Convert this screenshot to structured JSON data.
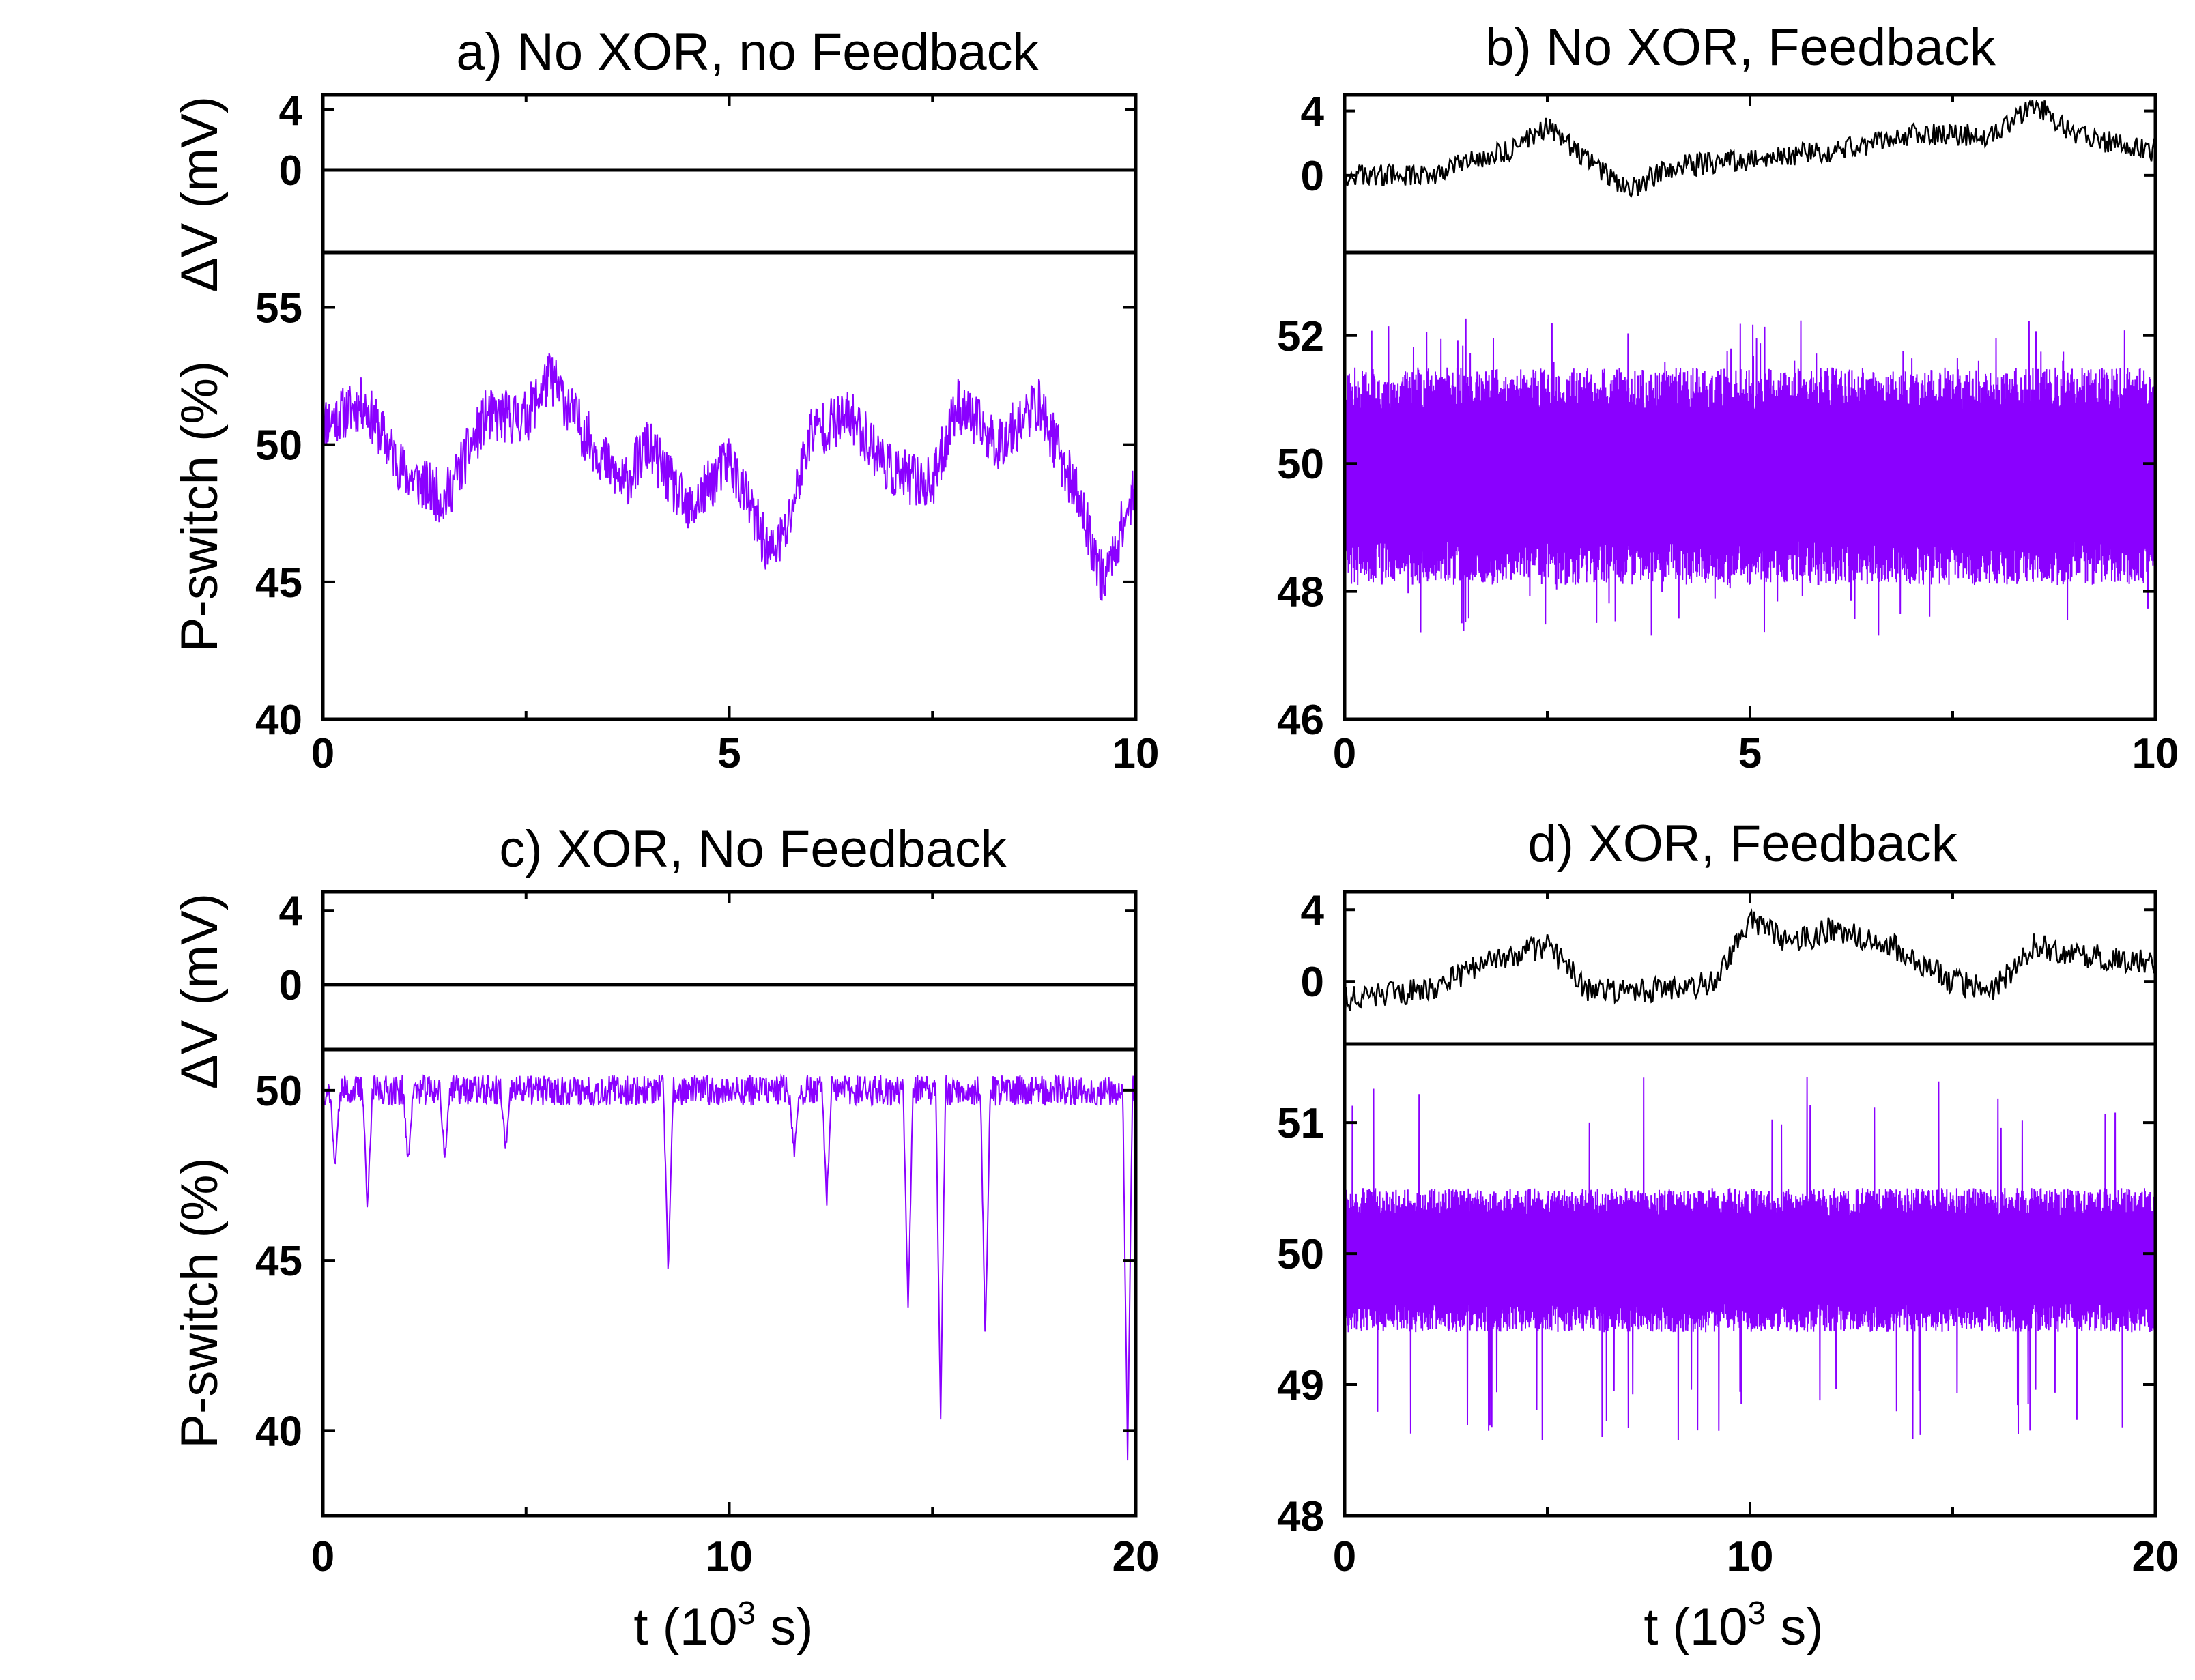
{
  "figure": {
    "xlabel_main": "t (10",
    "xlabel_sup": "3",
    "xlabel_tail": " s)",
    "ylabel_top": "ΔV (mV)",
    "ylabel_bottom": "P-switch (%)"
  },
  "colors": {
    "trace_purple": "#8a00ff",
    "trace_black": "#000000",
    "axis": "#000000"
  },
  "chart_data": [
    {
      "id": "a",
      "type": "line",
      "title": "a) No XOR, no Feedback",
      "xlim": [
        0,
        10
      ],
      "xticks": [
        "0",
        "5",
        "10"
      ],
      "top": {
        "ylabel": "ΔV (mV)",
        "yticks": [
          "4",
          "0"
        ],
        "ylim": [
          -5.5,
          5
        ],
        "style": "flat",
        "level": 0
      },
      "bottom": {
        "ylabel": "P-switch (%)",
        "yticks": [
          "40",
          "45",
          "50",
          "55"
        ],
        "ylim": [
          40,
          57
        ],
        "style": "wander",
        "mean": 49.8,
        "amplitude": 2.2,
        "noise": 1.0,
        "seed": 11,
        "keypoints": [
          [
            0,
            50.8
          ],
          [
            0.5,
            51.5
          ],
          [
            1,
            49
          ],
          [
            1.5,
            48
          ],
          [
            2,
            51
          ],
          [
            2.5,
            51
          ],
          [
            2.8,
            52.5
          ],
          [
            3.2,
            50.5
          ],
          [
            3.7,
            48.5
          ],
          [
            4,
            50
          ],
          [
            4.5,
            47.5
          ],
          [
            5,
            49.5
          ],
          [
            5.5,
            46
          ],
          [
            5.7,
            46.8
          ],
          [
            6,
            50.5
          ],
          [
            6.5,
            51
          ],
          [
            7,
            49
          ],
          [
            7.5,
            48.5
          ],
          [
            7.8,
            51.5
          ],
          [
            8.3,
            50
          ],
          [
            8.8,
            51.5
          ],
          [
            9.3,
            48
          ],
          [
            9.6,
            45
          ],
          [
            10,
            48.5
          ]
        ]
      }
    },
    {
      "id": "b",
      "type": "line",
      "title": "b) No XOR, Feedback",
      "xlim": [
        0,
        10
      ],
      "xticks": [
        "0",
        "5",
        "10"
      ],
      "top": {
        "ylabel": "ΔV (mV)",
        "yticks": [
          "4",
          "0"
        ],
        "ylim": [
          -4.8,
          5
        ],
        "style": "walk",
        "keypoints": [
          [
            0,
            0
          ],
          [
            1,
            0
          ],
          [
            2,
            1.5
          ],
          [
            2.5,
            3
          ],
          [
            3,
            1
          ],
          [
            3.5,
            -1
          ],
          [
            4,
            0.5
          ],
          [
            5,
            1
          ],
          [
            6,
            1.5
          ],
          [
            7,
            2.5
          ],
          [
            8,
            2.5
          ],
          [
            8.5,
            4.5
          ],
          [
            9,
            2.5
          ],
          [
            10,
            1.5
          ]
        ]
      },
      "bottom": {
        "ylabel": "P-switch (%)",
        "yticks": [
          "46",
          "48",
          "50",
          "52"
        ],
        "ylim": [
          46,
          53.3
        ],
        "style": "band",
        "mean": 49.8,
        "halfwidth": 1.7,
        "spikes": 2.5,
        "seed": 23
      }
    },
    {
      "id": "c",
      "type": "line",
      "title": "c) XOR, No Feedback",
      "xlim": [
        0,
        20
      ],
      "xticks": [
        "0",
        "10",
        "20"
      ],
      "top": {
        "ylabel": "ΔV (mV)",
        "yticks": [
          "4",
          "0"
        ],
        "ylim": [
          -3.5,
          5
        ],
        "style": "flat",
        "level": 0
      },
      "bottom": {
        "ylabel": "P-switch (%)",
        "yticks": [
          "40",
          "45",
          "50"
        ],
        "ylim": [
          37.5,
          51.2
        ],
        "style": "dips",
        "mean": 50,
        "seed": 37,
        "dips": [
          [
            0.3,
            47.5
          ],
          [
            1.1,
            46.5
          ],
          [
            2.1,
            47.8
          ],
          [
            3.0,
            48.0
          ],
          [
            4.5,
            48.2
          ],
          [
            8.5,
            44.6
          ],
          [
            11.6,
            48.0
          ],
          [
            12.4,
            46.8
          ],
          [
            14.4,
            43.6
          ],
          [
            15.2,
            40.4
          ],
          [
            16.3,
            42.6
          ],
          [
            19.8,
            39.2
          ]
        ]
      }
    },
    {
      "id": "d",
      "type": "line",
      "title": "d) XOR, Feedback",
      "xlim": [
        0,
        20
      ],
      "xticks": [
        "0",
        "10",
        "20"
      ],
      "top": {
        "ylabel": "ΔV (mV)",
        "yticks": [
          "4",
          "0"
        ],
        "ylim": [
          -3.5,
          5
        ],
        "style": "walk",
        "keypoints": [
          [
            0,
            -1
          ],
          [
            2,
            -0.5
          ],
          [
            3.5,
            1
          ],
          [
            5,
            2
          ],
          [
            6,
            -0.5
          ],
          [
            8,
            -0.5
          ],
          [
            9.2,
            0
          ],
          [
            10,
            3.5
          ],
          [
            11,
            2
          ],
          [
            12,
            3
          ],
          [
            13.5,
            2
          ],
          [
            15,
            0
          ],
          [
            16,
            -0.5
          ],
          [
            17,
            2
          ],
          [
            18,
            1.5
          ],
          [
            20,
            1
          ]
        ]
      },
      "bottom": {
        "ylabel": "P-switch (%)",
        "yticks": [
          "48",
          "49",
          "50",
          "51"
        ],
        "ylim": [
          48,
          51.6
        ],
        "style": "band",
        "mean": 49.95,
        "halfwidth": 0.55,
        "spikes": 1.4,
        "seed": 51
      }
    }
  ]
}
